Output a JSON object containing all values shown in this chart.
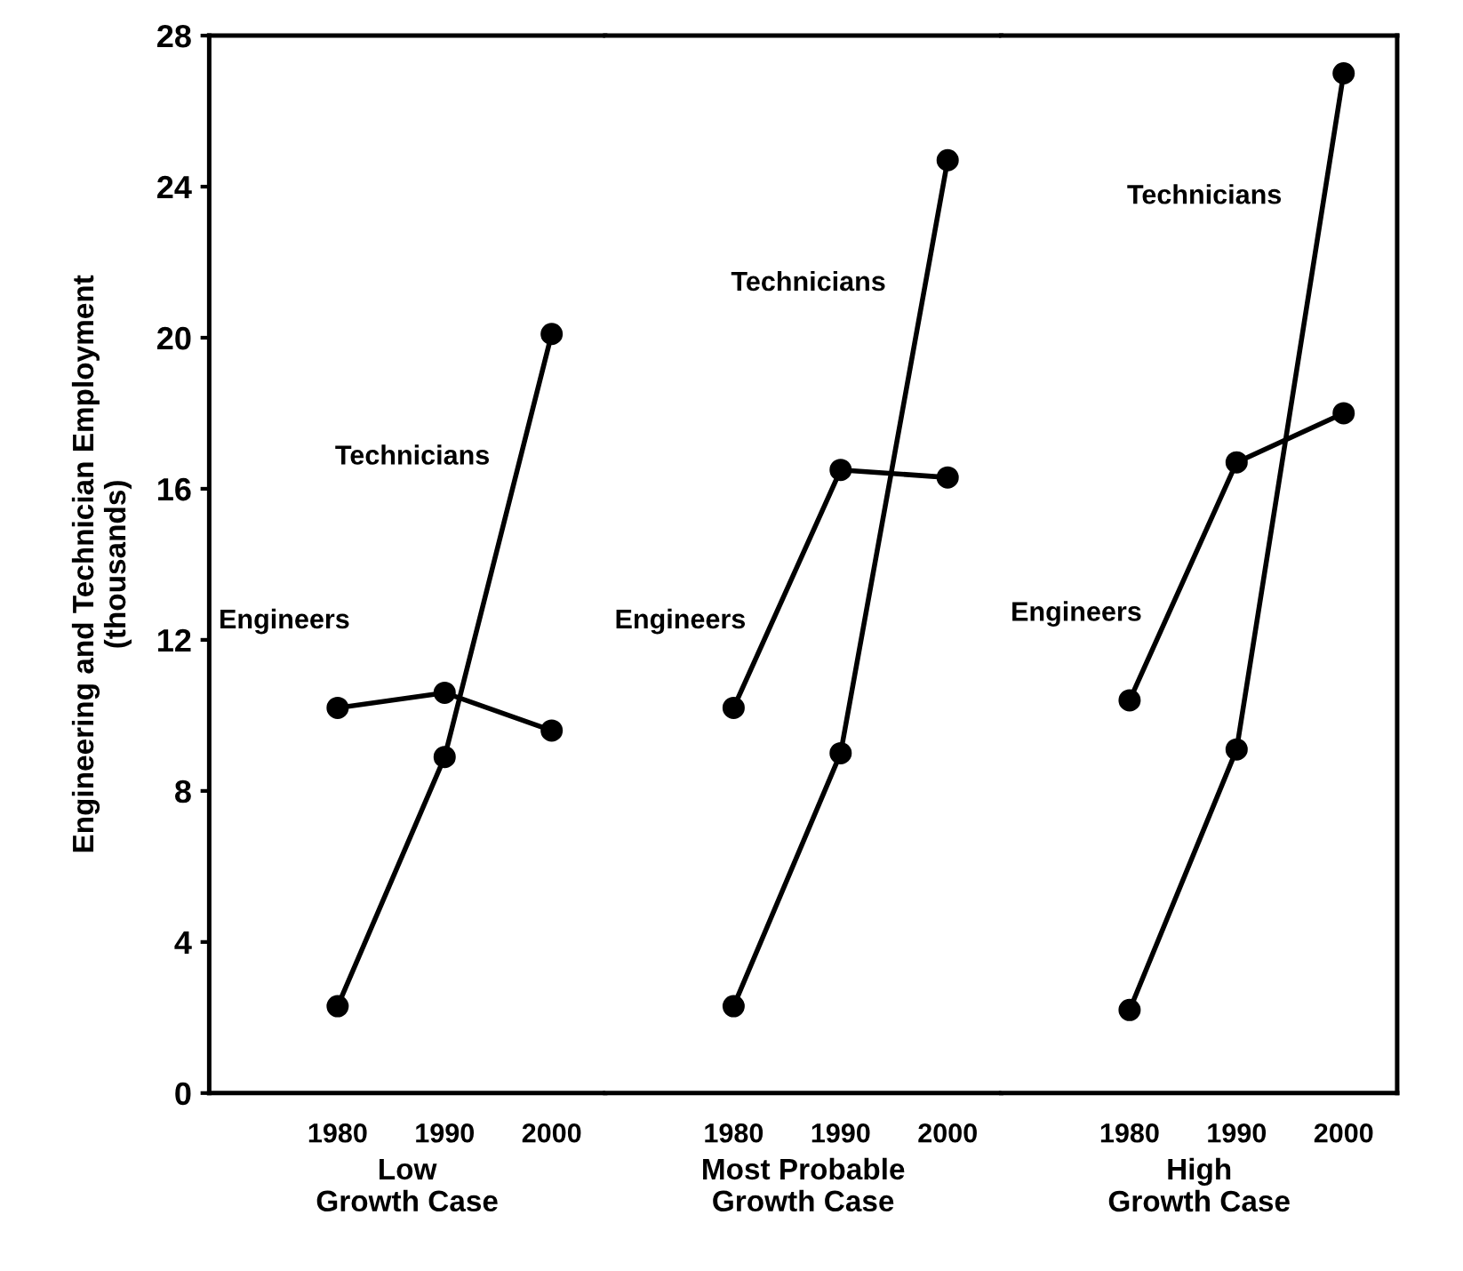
{
  "chart_data": [
    {
      "type": "line",
      "x": [
        1980,
        1990,
        2000
      ],
      "xlim": [
        1968,
        2005
      ],
      "xticks": [
        1980,
        1990,
        2000
      ],
      "ylim": [
        0,
        28
      ],
      "yticks": [
        0,
        4,
        8,
        12,
        16,
        20,
        24,
        28
      ],
      "xlabel": "Low\nGrowth Case",
      "ylabel": "Engineering and Technician Employment\n(thousands)",
      "marker": "circle",
      "line_style": "solid",
      "grid": false,
      "legend": false,
      "series": [
        {
          "name": "Engineers",
          "color": "#000000",
          "values": [
            10.2,
            10.6,
            9.6
          ]
        },
        {
          "name": "Technicians",
          "color": "#000000",
          "values": [
            2.3,
            8.9,
            20.1
          ]
        }
      ]
    },
    {
      "type": "line",
      "x": [
        1980,
        1990,
        2000
      ],
      "xlim": [
        1968,
        2005
      ],
      "xticks": [
        1980,
        1990,
        2000
      ],
      "ylim": [
        0,
        28
      ],
      "yticks": [
        0,
        4,
        8,
        12,
        16,
        20,
        24,
        28
      ],
      "tick_labels": "x",
      "xlabel": "Most Probable\nGrowth Case",
      "marker": "circle",
      "line_style": "solid",
      "grid": false,
      "legend": false,
      "series": [
        {
          "name": "Engineers",
          "color": "#000000",
          "values": [
            10.2,
            16.5,
            16.3
          ]
        },
        {
          "name": "Technicians",
          "color": "#000000",
          "values": [
            2.3,
            9.0,
            24.7
          ]
        }
      ]
    },
    {
      "type": "line",
      "x": [
        1980,
        1990,
        2000
      ],
      "xlim": [
        1968,
        2005
      ],
      "xticks": [
        1980,
        1990,
        2000
      ],
      "ylim": [
        0,
        28
      ],
      "yticks": [
        0,
        4,
        8,
        12,
        16,
        20,
        24,
        28
      ],
      "tick_labels": "x",
      "xlabel": "High\nGrowth Case",
      "marker": "circle",
      "line_style": "solid",
      "grid": false,
      "legend": false,
      "series": [
        {
          "name": "Engineers",
          "color": "#000000",
          "values": [
            10.4,
            16.7,
            18.0
          ]
        },
        {
          "name": "Technicians",
          "color": "#000000",
          "values": [
            2.2,
            9.1,
            27.0
          ]
        }
      ]
    }
  ]
}
